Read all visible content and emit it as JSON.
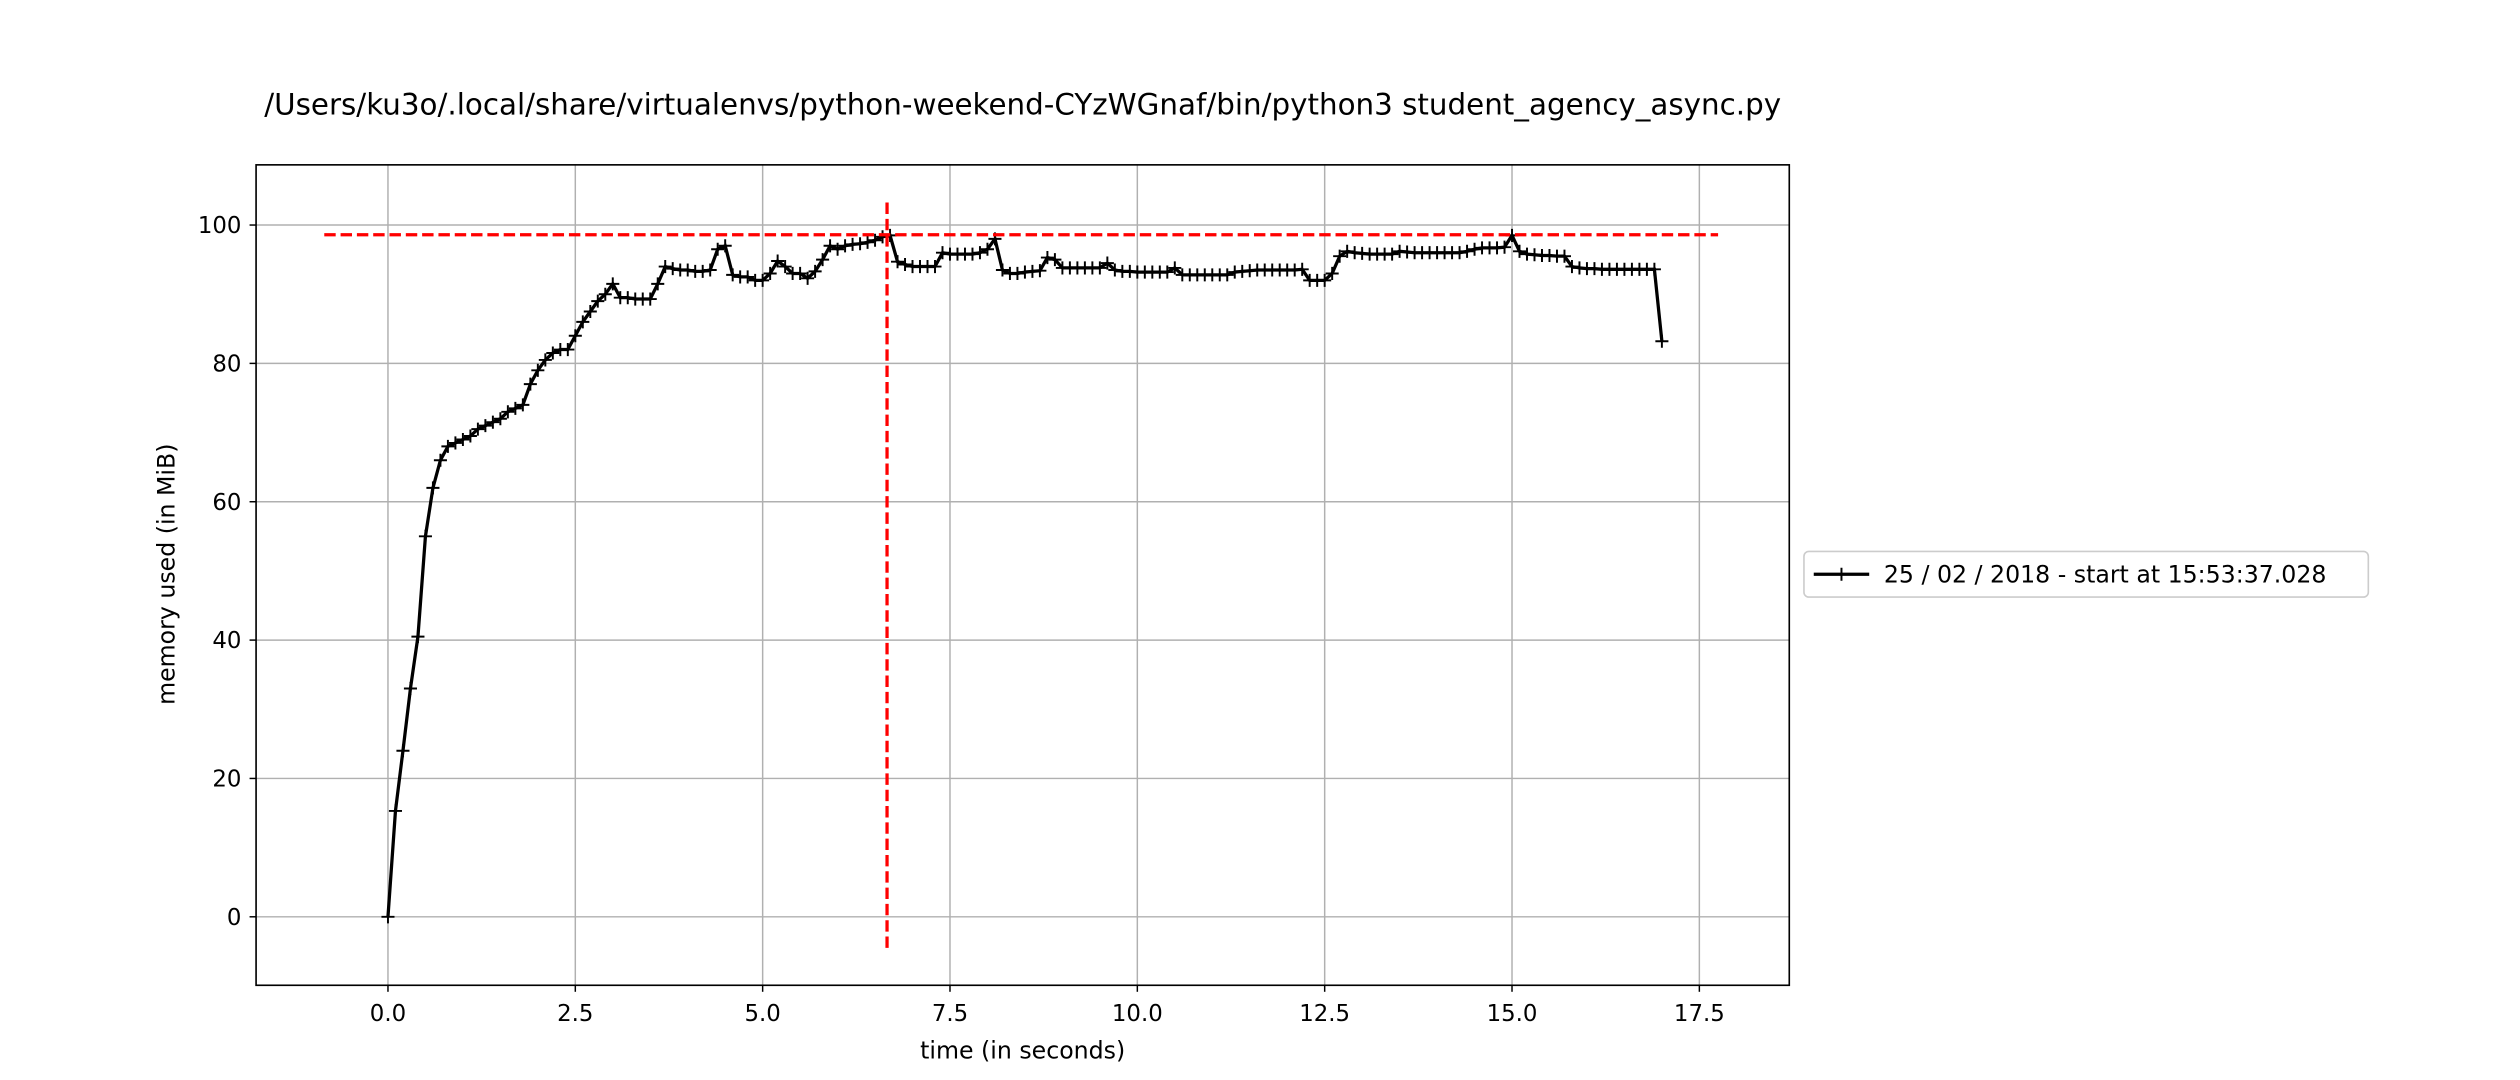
{
  "chart_data": {
    "type": "line",
    "title": "/Users/ku3o/.local/share/virtualenvs/python-weekend-CYzWGnaf/bin/python3 student_agency_async.py",
    "xlabel": "time (in seconds)",
    "ylabel": "memory used (in MiB)",
    "xlim": [
      -1.76,
      18.7
    ],
    "ylim": [
      -9.9,
      108.7
    ],
    "xticks": [
      {
        "value": 0,
        "label": "0.0"
      },
      2.5,
      {
        "value": 5,
        "label": "5.0"
      },
      7.5,
      {
        "value": 10,
        "label": "10.0"
      },
      12.5,
      {
        "value": 15,
        "label": "15.0"
      },
      17.5
    ],
    "yticks": [
      0,
      20,
      40,
      60,
      80,
      100
    ],
    "grid": true,
    "legend": "right",
    "series": [
      {
        "name": "25 / 02 / 2018 - start at 15:53:37.028",
        "color": "#000000",
        "x": [
          0.0,
          0.1,
          0.2,
          0.3,
          0.4,
          0.5,
          0.6,
          0.7,
          0.8,
          0.9,
          1.0,
          1.1,
          1.2,
          1.3,
          1.4,
          1.5,
          1.6,
          1.7,
          1.8,
          1.9,
          2.0,
          2.1,
          2.2,
          2.3,
          2.4,
          2.5,
          2.6,
          2.7,
          2.8,
          2.9,
          3.0,
          3.1,
          3.2,
          3.3,
          3.4,
          3.5,
          3.6,
          3.7,
          3.8,
          3.9,
          4.0,
          4.1,
          4.2,
          4.3,
          4.4,
          4.5,
          4.6,
          4.7,
          4.8,
          4.9,
          5.0,
          5.1,
          5.2,
          5.3,
          5.4,
          5.5,
          5.6,
          5.7,
          5.8,
          5.9,
          6.0,
          6.1,
          6.2,
          6.3,
          6.4,
          6.5,
          6.6,
          6.7,
          6.8,
          6.9,
          7.0,
          7.1,
          7.2,
          7.3,
          7.4,
          7.5,
          7.6,
          7.7,
          7.8,
          7.9,
          8.0,
          8.1,
          8.2,
          8.3,
          8.4,
          8.5,
          8.6,
          8.7,
          8.8,
          8.9,
          9.0,
          9.1,
          9.2,
          9.3,
          9.4,
          9.5,
          9.6,
          9.7,
          9.8,
          9.9,
          10.0,
          10.1,
          10.2,
          10.3,
          10.4,
          10.5,
          10.6,
          10.7,
          10.8,
          10.9,
          11.0,
          11.1,
          11.2,
          11.3,
          11.4,
          11.5,
          11.6,
          11.7,
          11.8,
          11.9,
          12.0,
          12.1,
          12.2,
          12.3,
          12.4,
          12.5,
          12.6,
          12.7,
          12.8,
          12.9,
          13.0,
          13.1,
          13.2,
          13.3,
          13.4,
          13.5,
          13.6,
          13.7,
          13.8,
          13.9,
          14.0,
          14.1,
          14.2,
          14.3,
          14.4,
          14.5,
          14.6,
          14.7,
          14.8,
          14.9,
          15.0,
          15.1,
          15.2,
          15.3,
          15.4,
          15.5,
          15.6,
          15.7,
          15.8,
          15.9,
          16.0,
          16.1,
          16.2,
          16.3,
          16.4,
          16.5,
          16.6,
          16.7,
          16.8,
          16.9,
          17.0
        ],
        "values": [
          0,
          15.3,
          24,
          33,
          40.5,
          55,
          62,
          66,
          68,
          68.5,
          69,
          69.5,
          70.5,
          71,
          71.5,
          72,
          73,
          73.5,
          74,
          77,
          79,
          80.5,
          81.5,
          82,
          82,
          84,
          86,
          87.5,
          89,
          90,
          91.5,
          89.5,
          89.5,
          89.3,
          89.3,
          89.3,
          91.5,
          94,
          93.7,
          93.5,
          93.5,
          93.3,
          93.3,
          93.5,
          96.5,
          97,
          92.8,
          92.5,
          92.5,
          92,
          92,
          93,
          94.8,
          94,
          93,
          93,
          92.3,
          93.3,
          95,
          97,
          96.5,
          97,
          97.2,
          97.3,
          97.5,
          97.8,
          98.3,
          98.5,
          94.7,
          94.3,
          94,
          94,
          94,
          94,
          96,
          95.8,
          95.8,
          95.8,
          95.8,
          96,
          96.5,
          98,
          93.5,
          93,
          93,
          93.2,
          93.3,
          93.4,
          95.3,
          95,
          93.8,
          93.8,
          93.8,
          93.8,
          93.8,
          93.8,
          94.5,
          93.5,
          93.3,
          93.3,
          93.2,
          93.2,
          93.2,
          93.2,
          93.2,
          93.8,
          92.8,
          92.8,
          92.8,
          92.8,
          92.8,
          92.8,
          92.8,
          93.2,
          93.3,
          93.4,
          93.5,
          93.5,
          93.5,
          93.5,
          93.5,
          93.5,
          93.6,
          92,
          92,
          92,
          93,
          95.5,
          96.2,
          96,
          95.9,
          95.8,
          95.8,
          95.8,
          95.8,
          96.2,
          96.1,
          96,
          96,
          96,
          96,
          96,
          96,
          96,
          96.2,
          96.5,
          96.7,
          96.7,
          96.7,
          96.8,
          98.5,
          96.2,
          95.8,
          95.7,
          95.6,
          95.6,
          95.5,
          95.5,
          94,
          93.8,
          93.7,
          93.7,
          93.6,
          93.6,
          93.6,
          93.6,
          93.6,
          93.6,
          93.6,
          93.6,
          83.2
        ]
      }
    ],
    "max_marker": {
      "color": "#ff0000",
      "x": 6.66,
      "y": 98.6,
      "x_span": [
        -0.85,
        17.75
      ],
      "y_span": [
        -4.5,
        103.3
      ]
    }
  }
}
